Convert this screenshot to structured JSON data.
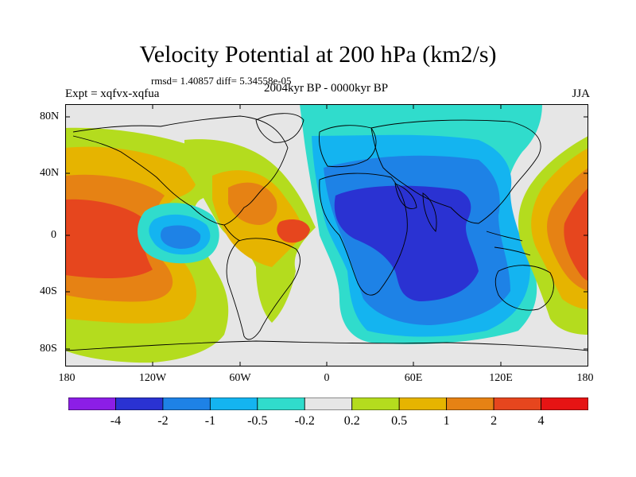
{
  "title": "Velocity Potential at 200 hPa (km2/s)",
  "stats": "rmsd= 1.40857 diff= 5.34558e-05",
  "experiment": "Expt = xqfvx-xqfua",
  "period": "2004kyr BP - 0000kyr BP",
  "season": "JJA",
  "lat_labels": [
    "80N",
    "40N",
    "0",
    "40S",
    "80S"
  ],
  "lon_labels": [
    "180",
    "120W",
    "60W",
    "0",
    "60E",
    "120E",
    "180"
  ],
  "colorbar": {
    "labels": [
      "-4",
      "-2",
      "-1",
      "-0.5",
      "-0.2",
      "0.2",
      "0.5",
      "1",
      "2",
      "4"
    ],
    "colors": [
      "#8c1ee6",
      "#2a32d2",
      "#1e82e6",
      "#14b4f0",
      "#30dccc",
      "#e6e6e6",
      "#b4dc1e",
      "#e6b400",
      "#e68214",
      "#e6461e",
      "#e61414"
    ]
  },
  "map_colors": {
    "ocean_background": "#e6e6e6",
    "coastline": "#000000"
  }
}
